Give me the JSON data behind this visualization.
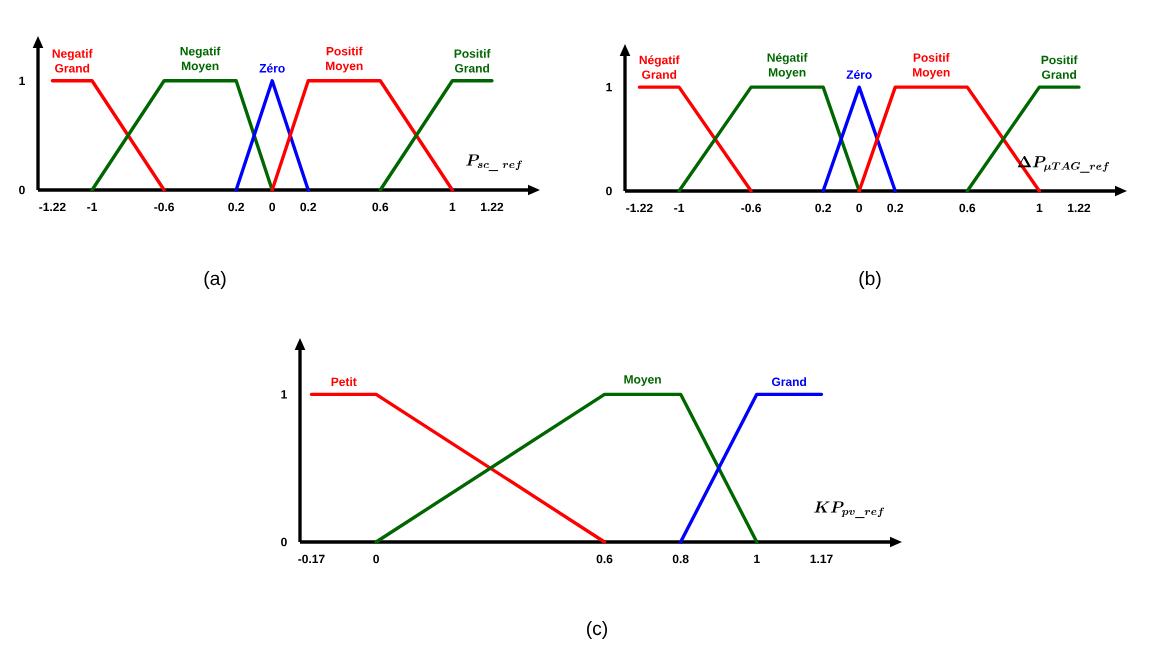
{
  "chart_data": [
    {
      "type": "line",
      "xlabel": "\\bm{P_{sc\\_\\ ref}}",
      "annotations": [
        "(a)"
      ],
      "xlim": [
        -1.3,
        1.42
      ],
      "ylim": [
        0,
        1.3
      ],
      "xticks": [
        -1.22,
        -1,
        -0.6,
        {
          "value": -0.2,
          "label": "0.2"
        },
        0,
        0.2,
        0.6,
        1,
        1.22
      ],
      "yticks": [
        0,
        1
      ],
      "series": [
        {
          "name": "Negatif Grand",
          "color": "#ff0000",
          "x": [
            -1.22,
            -1,
            -0.6
          ],
          "values": [
            1,
            1,
            0
          ]
        },
        {
          "name": "Negatif Moyen",
          "color": "#006600",
          "x": [
            -1,
            -0.6,
            -0.2,
            0
          ],
          "values": [
            0,
            1,
            1,
            0
          ]
        },
        {
          "name": "Zéro",
          "color": "#0000ff",
          "x": [
            -0.2,
            0,
            0.2
          ],
          "values": [
            0,
            1,
            0
          ]
        },
        {
          "name": "Positif Moyen",
          "color": "#ff0000",
          "x": [
            0,
            0.2,
            0.6,
            1
          ],
          "values": [
            0,
            1,
            1,
            0
          ]
        },
        {
          "name": "Positif Grand",
          "color": "#006600",
          "x": [
            0.6,
            1,
            1.22
          ],
          "values": [
            0,
            1,
            1
          ]
        }
      ]
    },
    {
      "type": "line",
      "xlabel": "\\bm{\\Delta P_{\\mu TAG\\_ref}}",
      "annotations": [
        "(b)"
      ],
      "xlim": [
        -1.3,
        1.42
      ],
      "ylim": [
        0,
        1.3
      ],
      "xticks": [
        -1.22,
        -1,
        -0.6,
        {
          "value": -0.2,
          "label": "0.2"
        },
        0,
        0.2,
        0.6,
        1,
        1.22
      ],
      "yticks": [
        0,
        1
      ],
      "series": [
        {
          "name": "Négatif Grand",
          "color": "#ff0000",
          "x": [
            -1.22,
            -1,
            -0.6
          ],
          "values": [
            1,
            1,
            0
          ]
        },
        {
          "name": "Négatif Moyen",
          "color": "#006600",
          "x": [
            -1,
            -0.6,
            -0.2,
            0
          ],
          "values": [
            0,
            1,
            1,
            0
          ]
        },
        {
          "name": "Zéro",
          "color": "#0000ff",
          "x": [
            -0.2,
            0,
            0.2
          ],
          "values": [
            0,
            1,
            0
          ]
        },
        {
          "name": "Positif Moyen",
          "color": "#ff0000",
          "x": [
            0,
            0.2,
            0.6,
            1
          ],
          "values": [
            0,
            1,
            1,
            0
          ]
        },
        {
          "name": "Positif Grand",
          "color": "#006600",
          "x": [
            0.6,
            1,
            1.22
          ],
          "values": [
            0,
            1,
            1
          ]
        }
      ]
    },
    {
      "type": "line",
      "xlabel": "\\bm{KP_{pv\\_ref}}",
      "annotations": [
        "(c)"
      ],
      "xlim": [
        -0.2,
        1.35
      ],
      "ylim": [
        0,
        1.3
      ],
      "xticks": [
        -0.17,
        0,
        0.6,
        0.8,
        1,
        1.17
      ],
      "yticks": [
        0,
        1
      ],
      "series": [
        {
          "name": "Petit",
          "color": "#ff0000",
          "x": [
            -0.17,
            0,
            0.6
          ],
          "values": [
            1,
            1,
            0
          ]
        },
        {
          "name": "Moyen",
          "color": "#006600",
          "x": [
            0,
            0.6,
            0.8,
            1
          ],
          "values": [
            0,
            1,
            1,
            0
          ]
        },
        {
          "name": "Grand",
          "color": "#0000ff",
          "x": [
            0.8,
            1,
            1.17
          ],
          "values": [
            0,
            1,
            1
          ]
        }
      ]
    }
  ]
}
